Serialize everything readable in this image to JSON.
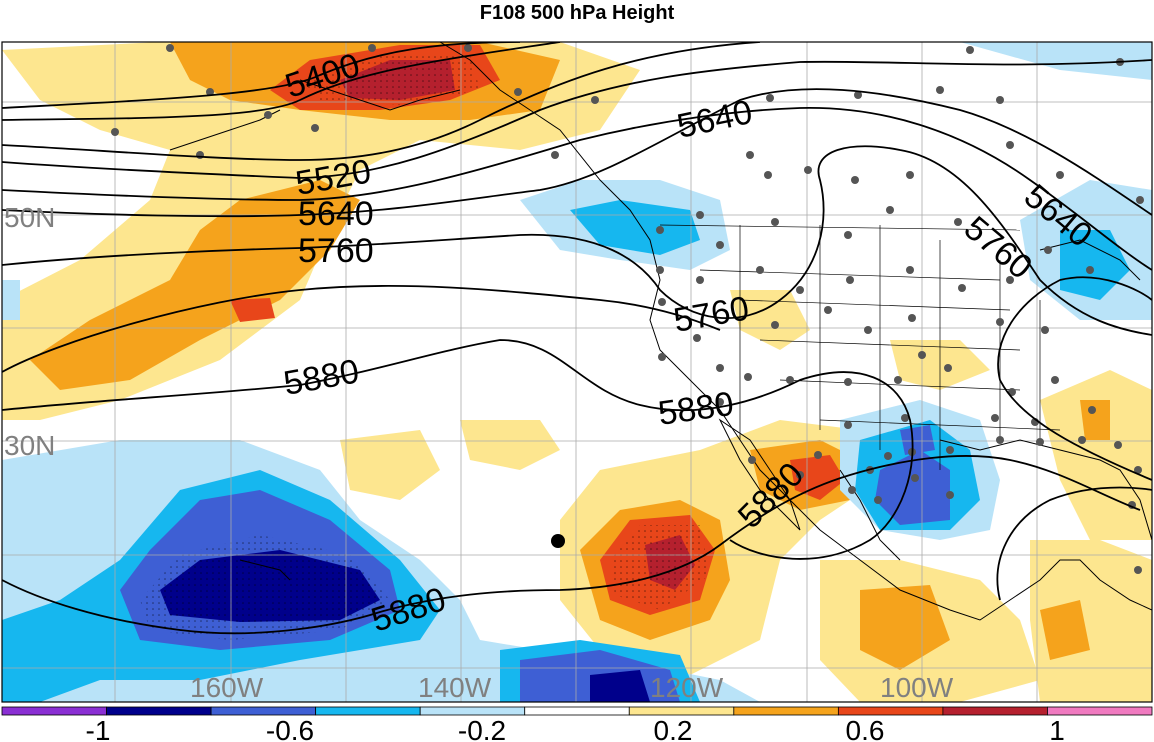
{
  "title": "F108 500 hPa Height",
  "map": {
    "lat_labels": [
      "50N",
      "30N"
    ],
    "lon_labels": [
      "160W",
      "140W",
      "120W",
      "100W"
    ],
    "contour_labels": [
      "5400",
      "5520",
      "5640",
      "5760",
      "5640",
      "5760",
      "5880",
      "5880",
      "5640",
      "5760",
      "5880",
      "5880"
    ],
    "colors": {
      "neg_max": "#00008b",
      "neg_high": "#3e5fd4",
      "neg_mid": "#16b7ef",
      "neg_low": "#b9e3f8",
      "pos_low": "#fde68f",
      "pos_mid": "#f5a31c",
      "pos_high": "#e8461a",
      "pos_max": "#b5202e",
      "station_dot": "#555555"
    }
  },
  "colorbar": {
    "colors": [
      "#8a2fd3",
      "#00008b",
      "#3e5fd4",
      "#16b7ef",
      "#b9e3f8",
      "#ffffff",
      "#fde68f",
      "#f5a31c",
      "#e8461a",
      "#b5202e",
      "#f07ac0"
    ],
    "tick_labels": [
      "-1",
      "-0.6",
      "-0.2",
      "0.2",
      "0.6",
      "1"
    ]
  }
}
